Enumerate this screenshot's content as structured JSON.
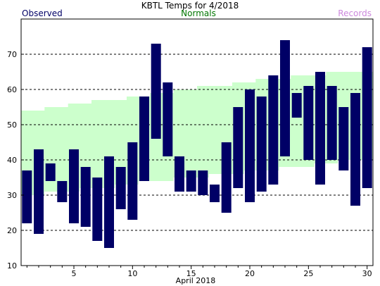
{
  "chart_data": {
    "type": "bar",
    "title": "KBTL Temps for 4/2018",
    "xlabel": "April 2018",
    "ylabel": "",
    "legend": {
      "observed": "Observed",
      "normals": "Normals",
      "records": "Records"
    },
    "colors": {
      "observed": "#000066",
      "normals_band": "#ccffcc",
      "observed_text": "#000066",
      "normals_text": "#007700",
      "records_text": "#cc88dd",
      "gridline": "#000000"
    },
    "ylim": [
      10,
      80
    ],
    "yticks": [
      10,
      20,
      30,
      40,
      50,
      60,
      70
    ],
    "xlim": [
      0.5,
      30.5
    ],
    "xticks": [
      5,
      10,
      15,
      20,
      25,
      30
    ],
    "grid": true,
    "days": [
      1,
      2,
      3,
      4,
      5,
      6,
      7,
      8,
      9,
      10,
      11,
      12,
      13,
      14,
      15,
      16,
      17,
      18,
      19,
      20,
      21,
      22,
      23,
      24,
      25,
      26,
      27,
      28,
      29,
      30
    ],
    "observed_low": [
      22,
      19,
      34,
      28,
      22,
      21,
      17,
      15,
      26,
      23,
      34,
      46,
      41,
      31,
      31,
      30,
      28,
      25,
      32,
      28,
      31,
      33,
      41,
      52,
      40,
      33,
      40,
      37,
      27,
      32
    ],
    "observed_high": [
      37,
      43,
      39,
      34,
      43,
      38,
      35,
      41,
      38,
      45,
      58,
      73,
      62,
      41,
      37,
      37,
      33,
      45,
      55,
      60,
      58,
      64,
      74,
      59,
      61,
      65,
      61,
      55,
      59,
      72
    ],
    "normal_low": [
      30,
      30,
      31,
      31,
      31,
      32,
      32,
      32,
      33,
      33,
      34,
      34,
      34,
      35,
      35,
      35,
      36,
      36,
      36,
      37,
      37,
      37,
      38,
      38,
      38,
      39,
      39,
      40,
      40,
      40
    ],
    "normal_high": [
      54,
      54,
      55,
      55,
      56,
      56,
      57,
      57,
      57,
      58,
      58,
      59,
      59,
      60,
      60,
      61,
      61,
      61,
      62,
      62,
      63,
      63,
      63,
      64,
      64,
      64,
      65,
      65,
      65,
      65
    ]
  }
}
